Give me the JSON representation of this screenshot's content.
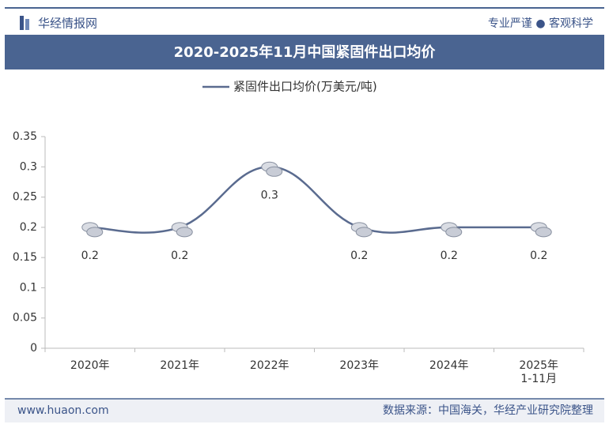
{
  "header": {
    "logo": "华经情报网",
    "tagline": "专业严谨 ● 客观科学"
  },
  "chart_data": {
    "type": "line",
    "title": "2020-2025年11月中国紧固件出口均价",
    "categories": [
      "2020年",
      "2021年",
      "2022年",
      "2023年",
      "2024年",
      "2025年\n1-11月"
    ],
    "series": [
      {
        "name": "紧固件出口均价(万美元/吨)",
        "color": "#5a6b8f",
        "values": [
          0.2,
          0.2,
          0.3,
          0.2,
          0.2,
          0.2
        ]
      }
    ],
    "ylim": [
      0,
      0.35
    ],
    "yticks": [
      0,
      0.05,
      0.1,
      0.15,
      0.2,
      0.25,
      0.3,
      0.35
    ],
    "grid": false,
    "data_labels": true,
    "legend": "top"
  },
  "footer": {
    "website": "www.huaon.com",
    "source": "数据来源：中国海关，华经产业研究院整理"
  }
}
